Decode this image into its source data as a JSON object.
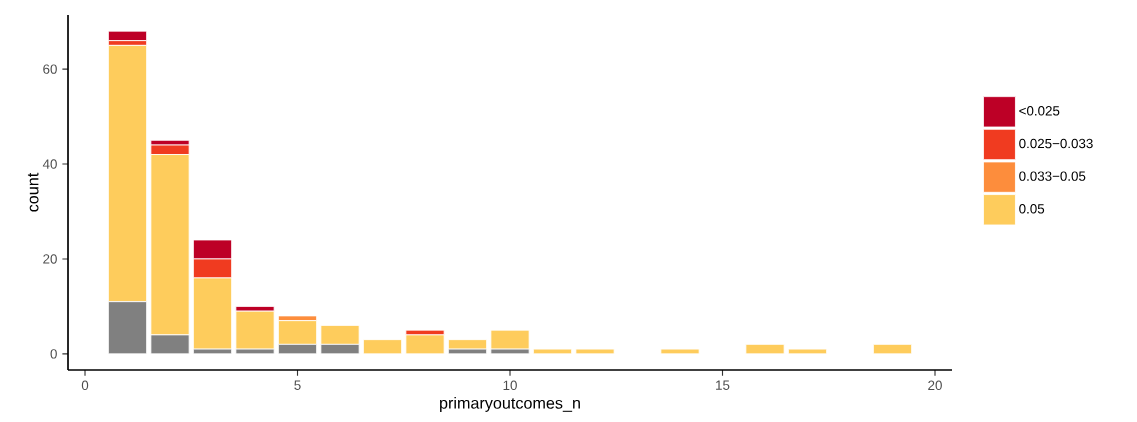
{
  "chart_data": {
    "type": "bar",
    "stacked": true,
    "xlabel": "primaryoutcomes_n",
    "ylabel": "count",
    "x": [
      1,
      2,
      3,
      4,
      5,
      6,
      7,
      8,
      9,
      10,
      11,
      12,
      13,
      14,
      15,
      16,
      17,
      18,
      19
    ],
    "series": [
      {
        "color": "#808080",
        "values": [
          11,
          4,
          1,
          1,
          2,
          2,
          0,
          0,
          1,
          1,
          0,
          0,
          0,
          0,
          0,
          0,
          0,
          0,
          0
        ]
      },
      {
        "name": "0.05",
        "color": "#fecc5c",
        "values": [
          54,
          38,
          15,
          8,
          5,
          4,
          3,
          4,
          2,
          4,
          1,
          1,
          0,
          1,
          0,
          2,
          1,
          0,
          2
        ]
      },
      {
        "name": "0.033−0.05",
        "color": "#fd8d3c",
        "values": [
          0,
          0,
          0,
          0,
          1,
          0,
          0,
          0,
          0,
          0,
          0,
          0,
          0,
          0,
          0,
          0,
          0,
          0,
          0
        ]
      },
      {
        "name": "0.025−0.033",
        "color": "#f03b20",
        "values": [
          1,
          2,
          4,
          0,
          0,
          0,
          0,
          1,
          0,
          0,
          0,
          0,
          0,
          0,
          0,
          0,
          0,
          0,
          0
        ]
      },
      {
        "name": "<0.025",
        "color": "#bd0026",
        "values": [
          2,
          1,
          4,
          1,
          0,
          0,
          0,
          0,
          0,
          0,
          0,
          0,
          0,
          0,
          0,
          0,
          0,
          0,
          0
        ]
      }
    ],
    "xlim": [
      -0.4,
      20.4
    ],
    "ylim": [
      -3.4,
      71.4
    ],
    "xticks": [
      0,
      5,
      10,
      15,
      20
    ],
    "yticks": [
      0,
      20,
      40,
      60
    ],
    "grid": false,
    "legend": "right"
  }
}
